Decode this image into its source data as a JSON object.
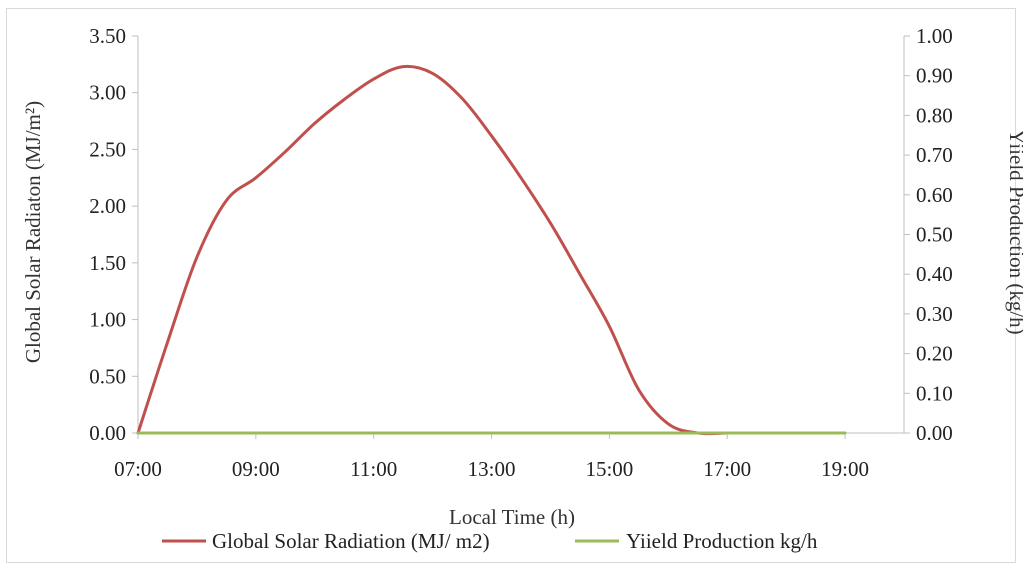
{
  "chart_data": {
    "type": "line",
    "x": [
      "07:00",
      "07:30",
      "08:00",
      "08:30",
      "09:00",
      "09:30",
      "10:00",
      "10:30",
      "11:00",
      "11:30",
      "12:00",
      "12:30",
      "13:00",
      "13:30",
      "14:00",
      "14:30",
      "15:00",
      "15:30",
      "16:00",
      "16:30",
      "17:00",
      "17:30",
      "18:00",
      "18:30",
      "19:00"
    ],
    "x_tick_labels": [
      "07:00",
      "09:00",
      "11:00",
      "13:00",
      "15:00",
      "17:00",
      "19:00"
    ],
    "xlabel": "Local Time (h)",
    "ylabel_left": "Global Solar Radiaton (MJ/m²)",
    "ylabel_right": "Yiield Production (kg/h)",
    "y_left_ticks": [
      "0.00",
      "0.50",
      "1.00",
      "1.50",
      "2.00",
      "2.50",
      "3.00",
      "3.50"
    ],
    "y_right_ticks": [
      "0.00",
      "0.10",
      "0.20",
      "0.30",
      "0.40",
      "0.50",
      "0.60",
      "0.70",
      "0.80",
      "0.90",
      "1.00"
    ],
    "ylim_left": [
      0,
      3.5
    ],
    "ylim_right": [
      0,
      1.0
    ],
    "legend_position": "bottom",
    "series": [
      {
        "name": "Global Solar Radiation (MJ/ m2)",
        "axis": "left",
        "color": "#c0504d",
        "values": [
          0.0,
          0.8,
          1.55,
          2.05,
          2.25,
          2.48,
          2.73,
          2.94,
          3.12,
          3.23,
          3.17,
          2.95,
          2.62,
          2.25,
          1.85,
          1.4,
          0.94,
          0.38,
          0.08,
          0.0,
          0.0,
          null,
          null,
          null,
          null
        ]
      },
      {
        "name": "Yiield Production kg/h",
        "axis": "right",
        "color": "#9bbb59",
        "values": [
          0.0,
          0.0,
          0.0,
          0.0,
          0.0,
          0.0,
          0.0,
          0.0,
          0.0,
          0.0,
          0.0,
          0.0,
          0.0,
          0.0,
          0.0,
          0.0,
          0.0,
          0.0,
          0.0,
          0.0,
          0.0,
          0.0,
          0.0,
          0.0,
          0.0
        ]
      }
    ]
  },
  "legend": {
    "solar_label": "Global Solar Radiation (MJ/ m2)",
    "yield_label": "Yiield Production kg/h"
  }
}
